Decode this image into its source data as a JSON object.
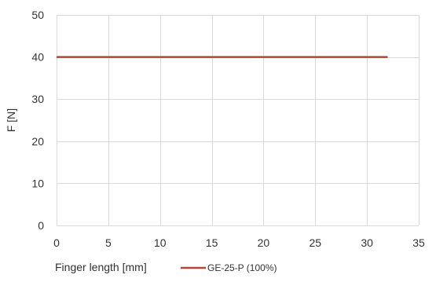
{
  "chart_data": {
    "type": "line",
    "title": "",
    "xlabel": "Finger length [mm]",
    "ylabel": "F [N]",
    "xlim": [
      0,
      35
    ],
    "ylim": [
      0,
      50
    ],
    "xticks": [
      0,
      5,
      10,
      15,
      20,
      25,
      30,
      35
    ],
    "yticks": [
      0,
      10,
      20,
      30,
      40,
      50
    ],
    "grid": true,
    "legend_position": "bottom",
    "series": [
      {
        "name": "GE-25-P (100%)",
        "color": "#b5453f",
        "x": [
          0,
          32
        ],
        "y": [
          40,
          40
        ]
      }
    ]
  }
}
